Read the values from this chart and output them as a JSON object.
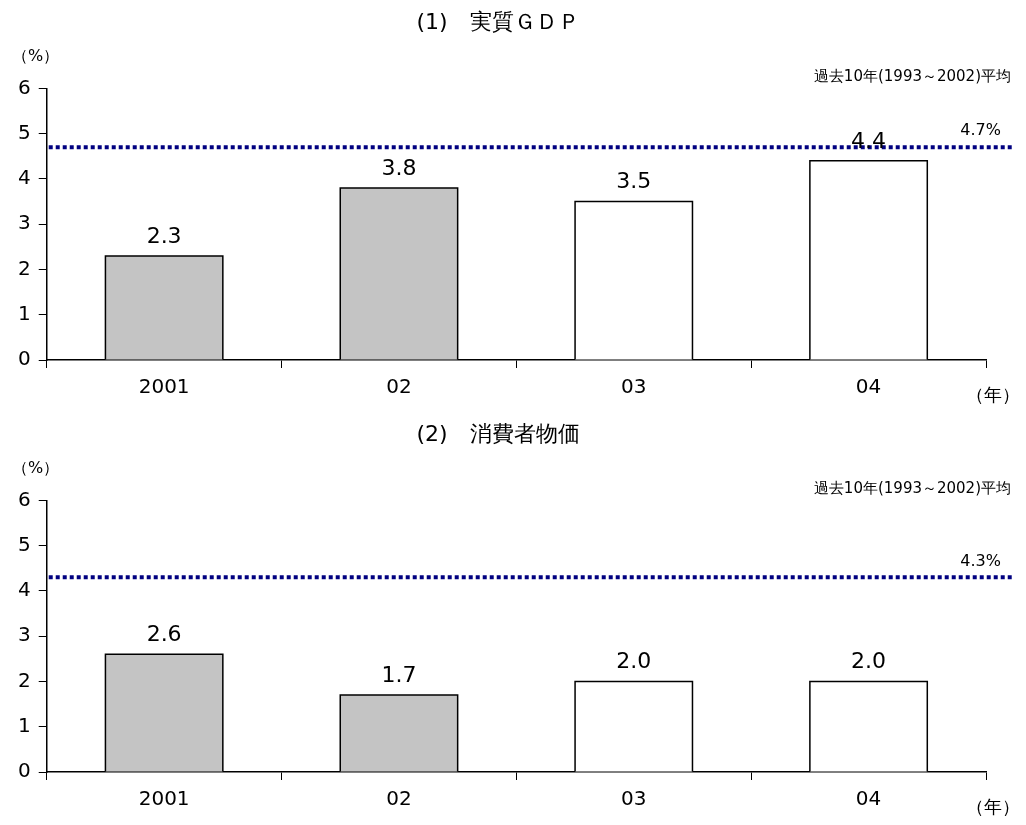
{
  "chart_data": [
    {
      "type": "bar",
      "title": "(1)　実質ＧＤＰ",
      "ylabel": "（%）",
      "xlabel": "（年）",
      "categories": [
        "2001",
        "02",
        "03",
        "04"
      ],
      "values": [
        2.3,
        3.8,
        3.5,
        4.4
      ],
      "value_labels": [
        "2.3",
        "3.8",
        "3.5",
        "4.4"
      ],
      "colors": [
        "#c4c4c4",
        "#c4c4c4",
        "#ffffff",
        "#ffffff"
      ],
      "ylim": [
        0,
        6
      ],
      "yticks": [
        0,
        1,
        2,
        3,
        4,
        5,
        6
      ],
      "grid": false,
      "legend": false,
      "ref_lines": [
        {
          "axis": "y",
          "value": 4.7,
          "label": "4.7%",
          "color": "#000080",
          "line_style": "dotted"
        }
      ],
      "annotations": [
        "過去10年(1993～2002)平均"
      ]
    },
    {
      "type": "bar",
      "title": "(2)　消費者物価",
      "ylabel": "（%）",
      "xlabel": "（年）",
      "categories": [
        "2001",
        "02",
        "03",
        "04"
      ],
      "values": [
        2.6,
        1.7,
        2.0,
        2.0
      ],
      "value_labels": [
        "2.6",
        "1.7",
        "2.0",
        "2.0"
      ],
      "colors": [
        "#c4c4c4",
        "#c4c4c4",
        "#ffffff",
        "#ffffff"
      ],
      "ylim": [
        0,
        6
      ],
      "yticks": [
        0,
        1,
        2,
        3,
        4,
        5,
        6
      ],
      "grid": false,
      "legend": false,
      "ref_lines": [
        {
          "axis": "y",
          "value": 4.3,
          "label": "4.3%",
          "color": "#000080",
          "line_style": "dotted"
        }
      ],
      "annotations": [
        "過去10年(1993～2002)平均"
      ]
    }
  ]
}
